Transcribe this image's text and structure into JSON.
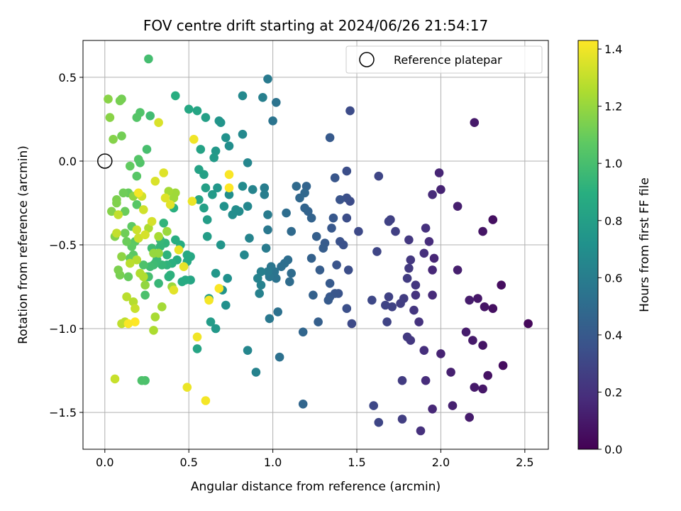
{
  "chart_data": {
    "type": "scatter",
    "title": "FOV centre drift starting at 2024/06/26 21:54:17",
    "xlabel": "Angular distance from reference (arcmin)",
    "ylabel": "Rotation from reference (arcmin)",
    "xlim": [
      -0.13,
      2.64
    ],
    "ylim": [
      -1.72,
      0.72
    ],
    "xticks": [
      0.0,
      0.5,
      1.0,
      1.5,
      2.0,
      2.5
    ],
    "xtick_labels": [
      "0.0",
      "0.5",
      "1.0",
      "1.5",
      "2.0",
      "2.5"
    ],
    "yticks": [
      0.5,
      0.0,
      -0.5,
      -1.0,
      -1.5
    ],
    "ytick_labels": [
      "0.5",
      "0.0",
      "−0.5",
      "−1.0",
      "−1.5"
    ],
    "grid": true,
    "legend": {
      "placement": "top-right",
      "label": "Reference platepar"
    },
    "reference_point": [
      0.0,
      0.0
    ],
    "colorbar": {
      "label": "Hours from first FF file",
      "colormap": "viridis",
      "range": [
        0.0,
        1.43
      ],
      "ticks": [
        0.0,
        0.2,
        0.4,
        0.6,
        0.8,
        1.0,
        1.2,
        1.4
      ],
      "tick_labels": [
        "0.0",
        "0.2",
        "0.4",
        "0.6",
        "0.8",
        "1.0",
        "1.2",
        "1.4"
      ]
    },
    "points": [
      [
        2.52,
        -0.97,
        0.03
      ],
      [
        2.37,
        -1.22,
        0.05
      ],
      [
        2.36,
        -0.74,
        0.05
      ],
      [
        2.31,
        -0.35,
        0.06
      ],
      [
        2.31,
        -0.88,
        0.06
      ],
      [
        2.28,
        -1.28,
        0.07
      ],
      [
        2.25,
        -0.42,
        0.08
      ],
      [
        2.26,
        -0.87,
        0.08
      ],
      [
        2.25,
        -1.1,
        0.08
      ],
      [
        2.25,
        -1.36,
        0.09
      ],
      [
        2.22,
        -0.82,
        0.09
      ],
      [
        2.2,
        -1.35,
        0.1
      ],
      [
        2.2,
        0.23,
        0.1
      ],
      [
        2.19,
        -1.07,
        0.1
      ],
      [
        2.17,
        -1.53,
        0.11
      ],
      [
        2.17,
        -0.83,
        0.11
      ],
      [
        2.15,
        -1.02,
        0.11
      ],
      [
        2.1,
        -0.65,
        0.12
      ],
      [
        2.1,
        -0.27,
        0.12
      ],
      [
        2.07,
        -1.46,
        0.13
      ],
      [
        2.06,
        -1.26,
        0.13
      ],
      [
        2.0,
        -0.17,
        0.14
      ],
      [
        2.0,
        -1.15,
        0.14
      ],
      [
        1.99,
        -0.07,
        0.15
      ],
      [
        1.96,
        -0.58,
        0.15
      ],
      [
        1.95,
        -0.65,
        0.16
      ],
      [
        1.95,
        -1.48,
        0.16
      ],
      [
        1.95,
        -0.8,
        0.17
      ],
      [
        1.95,
        -0.2,
        0.17
      ],
      [
        1.93,
        -0.48,
        0.18
      ],
      [
        1.91,
        -1.31,
        0.18
      ],
      [
        1.9,
        -0.55,
        0.19
      ],
      [
        1.9,
        -1.13,
        0.19
      ],
      [
        1.91,
        -0.4,
        0.2
      ],
      [
        1.88,
        -1.61,
        0.2
      ],
      [
        1.87,
        -0.96,
        0.21
      ],
      [
        1.85,
        -0.8,
        0.21
      ],
      [
        1.85,
        -0.74,
        0.22
      ],
      [
        1.84,
        -0.89,
        0.22
      ],
      [
        1.82,
        -1.07,
        0.23
      ],
      [
        1.82,
        -0.59,
        0.23
      ],
      [
        1.81,
        -0.47,
        0.23
      ],
      [
        1.8,
        -1.05,
        0.24
      ],
      [
        1.81,
        -0.64,
        0.24
      ],
      [
        1.8,
        -0.7,
        0.25
      ],
      [
        1.77,
        -1.31,
        0.25
      ],
      [
        1.78,
        -0.82,
        0.25
      ],
      [
        1.77,
        -1.54,
        0.26
      ],
      [
        1.76,
        -0.85,
        0.26
      ],
      [
        1.73,
        -0.42,
        0.27
      ],
      [
        1.7,
        -0.35,
        0.27
      ],
      [
        1.71,
        -0.87,
        0.28
      ],
      [
        1.69,
        -0.81,
        0.28
      ],
      [
        1.69,
        -0.36,
        0.28
      ],
      [
        1.67,
        -0.86,
        0.29
      ],
      [
        1.68,
        -0.96,
        0.29
      ],
      [
        1.63,
        -0.09,
        0.3
      ],
      [
        1.63,
        -1.56,
        0.3
      ],
      [
        1.62,
        -0.54,
        0.3
      ],
      [
        1.6,
        -1.46,
        0.31
      ],
      [
        1.59,
        -0.83,
        0.31
      ],
      [
        1.51,
        -0.42,
        0.32
      ],
      [
        1.47,
        -0.97,
        0.32
      ],
      [
        1.46,
        -0.24,
        0.33
      ],
      [
        1.46,
        0.3,
        0.33
      ],
      [
        1.45,
        -0.65,
        0.34
      ],
      [
        1.44,
        -0.34,
        0.34
      ],
      [
        1.44,
        -0.06,
        0.34
      ],
      [
        1.44,
        -0.88,
        0.35
      ],
      [
        1.44,
        -0.22,
        0.35
      ],
      [
        1.42,
        -0.5,
        0.36
      ],
      [
        1.4,
        -0.48,
        0.36
      ],
      [
        1.4,
        -0.23,
        0.37
      ],
      [
        1.39,
        -0.79,
        0.37
      ],
      [
        1.38,
        -0.62,
        0.37
      ],
      [
        1.37,
        -0.79,
        0.38
      ],
      [
        1.37,
        -0.1,
        0.38
      ],
      [
        1.36,
        -0.34,
        0.39
      ],
      [
        1.34,
        -0.81,
        0.39
      ],
      [
        1.35,
        -0.4,
        0.39
      ],
      [
        1.34,
        0.14,
        0.4
      ],
      [
        1.34,
        -0.73,
        0.4
      ],
      [
        1.33,
        -0.83,
        0.41
      ],
      [
        1.31,
        -0.49,
        0.41
      ],
      [
        1.3,
        -0.52,
        0.42
      ],
      [
        1.28,
        -0.65,
        0.42
      ],
      [
        1.27,
        -0.96,
        0.43
      ],
      [
        1.26,
        -0.45,
        0.43
      ],
      [
        1.24,
        -0.8,
        0.44
      ],
      [
        1.23,
        -0.58,
        0.44
      ],
      [
        1.23,
        -0.34,
        0.45
      ],
      [
        1.21,
        -0.3,
        0.45
      ],
      [
        1.2,
        -0.15,
        0.46
      ],
      [
        1.19,
        -0.28,
        0.46
      ],
      [
        1.18,
        -1.02,
        0.47
      ],
      [
        1.18,
        -1.45,
        0.47
      ],
      [
        1.19,
        -0.19,
        0.48
      ],
      [
        1.16,
        -0.22,
        0.48
      ],
      [
        1.14,
        -0.15,
        0.49
      ],
      [
        1.11,
        -0.42,
        0.49
      ],
      [
        1.11,
        -0.67,
        0.5
      ],
      [
        1.1,
        -0.72,
        0.5
      ],
      [
        1.09,
        -0.59,
        0.51
      ],
      [
        1.08,
        -0.31,
        0.51
      ],
      [
        1.07,
        -0.61,
        0.52
      ],
      [
        1.05,
        -0.63,
        0.52
      ],
      [
        1.04,
        -1.17,
        0.53
      ],
      [
        1.03,
        -0.9,
        0.53
      ],
      [
        1.02,
        0.35,
        0.54
      ],
      [
        1.02,
        -0.7,
        0.54
      ],
      [
        1.01,
        -0.66,
        0.55
      ],
      [
        1.0,
        0.24,
        0.55
      ],
      [
        0.99,
        -0.63,
        0.56
      ],
      [
        0.98,
        -0.69,
        0.56
      ],
      [
        0.98,
        -0.94,
        0.57
      ],
      [
        0.97,
        -0.41,
        0.57
      ],
      [
        0.97,
        -0.66,
        0.58
      ],
      [
        0.97,
        0.49,
        0.58
      ],
      [
        0.97,
        -0.32,
        0.59
      ],
      [
        0.96,
        -0.52,
        0.59
      ],
      [
        0.95,
        -0.2,
        0.6
      ],
      [
        0.95,
        -0.16,
        0.6
      ],
      [
        0.94,
        0.38,
        0.61
      ],
      [
        0.93,
        -0.66,
        0.61
      ],
      [
        0.93,
        -0.74,
        0.62
      ],
      [
        0.92,
        -0.79,
        0.62
      ],
      [
        0.91,
        -0.7,
        0.63
      ],
      [
        0.9,
        -1.26,
        0.63
      ],
      [
        0.88,
        -0.17,
        0.64
      ],
      [
        0.86,
        -0.46,
        0.64
      ],
      [
        0.85,
        -0.01,
        0.65
      ],
      [
        0.85,
        -1.13,
        0.65
      ],
      [
        0.85,
        -0.27,
        0.66
      ],
      [
        0.83,
        -0.56,
        0.66
      ],
      [
        0.82,
        0.39,
        0.67
      ],
      [
        0.82,
        0.16,
        0.67
      ],
      [
        0.82,
        -0.15,
        0.68
      ],
      [
        0.8,
        -0.3,
        0.68
      ],
      [
        0.78,
        -0.29,
        0.69
      ],
      [
        0.76,
        -0.32,
        0.69
      ],
      [
        0.74,
        0.09,
        0.7
      ],
      [
        0.74,
        -0.2,
        0.7
      ],
      [
        0.73,
        -0.7,
        0.71
      ],
      [
        0.72,
        -0.86,
        0.71
      ],
      [
        0.71,
        -0.27,
        0.72
      ],
      [
        0.72,
        0.14,
        0.72
      ],
      [
        0.7,
        -0.77,
        0.73
      ],
      [
        0.69,
        0.23,
        0.73
      ],
      [
        0.69,
        -0.5,
        0.74
      ],
      [
        0.68,
        0.24,
        0.74
      ],
      [
        0.67,
        -0.16,
        0.75
      ],
      [
        0.66,
        -0.67,
        0.75
      ],
      [
        0.66,
        0.06,
        0.76
      ],
      [
        0.66,
        -1.0,
        0.76
      ],
      [
        0.65,
        0.02,
        0.77
      ],
      [
        0.64,
        -0.2,
        0.77
      ],
      [
        0.63,
        -0.96,
        0.78
      ],
      [
        0.62,
        -0.82,
        0.78
      ],
      [
        0.61,
        -0.35,
        0.79
      ],
      [
        0.61,
        -0.45,
        0.79
      ],
      [
        0.6,
        0.26,
        0.8
      ],
      [
        0.6,
        -0.16,
        0.8
      ],
      [
        0.59,
        -0.28,
        0.81
      ],
      [
        0.59,
        -0.08,
        0.81
      ],
      [
        0.57,
        0.07,
        0.82
      ],
      [
        0.56,
        -0.05,
        0.82
      ],
      [
        0.56,
        -0.23,
        0.83
      ],
      [
        0.55,
        -1.12,
        0.83
      ],
      [
        0.55,
        0.3,
        0.84
      ],
      [
        0.51,
        -0.71,
        0.84
      ],
      [
        0.51,
        -0.57,
        0.85
      ],
      [
        0.5,
        0.31,
        0.85
      ],
      [
        0.49,
        -0.56,
        0.86
      ],
      [
        0.49,
        -0.6,
        0.86
      ],
      [
        0.48,
        -0.71,
        0.87
      ],
      [
        0.46,
        -0.72,
        0.87
      ],
      [
        0.45,
        -0.5,
        0.88
      ],
      [
        0.43,
        -0.59,
        0.88
      ],
      [
        0.42,
        -0.47,
        0.89
      ],
      [
        0.42,
        0.39,
        0.89
      ],
      [
        0.41,
        -0.28,
        0.9
      ],
      [
        0.4,
        -0.61,
        0.9
      ],
      [
        0.39,
        -0.68,
        0.91
      ],
      [
        0.38,
        -0.69,
        0.91
      ],
      [
        0.37,
        -0.56,
        0.92
      ],
      [
        0.37,
        -0.62,
        0.92
      ],
      [
        0.36,
        -0.49,
        0.93
      ],
      [
        0.35,
        -0.37,
        0.93
      ],
      [
        0.34,
        -0.62,
        0.94
      ],
      [
        0.33,
        -0.51,
        0.94
      ],
      [
        0.33,
        -0.47,
        0.95
      ],
      [
        0.32,
        -0.73,
        0.95
      ],
      [
        0.31,
        -0.59,
        0.96
      ],
      [
        0.3,
        -0.61,
        0.96
      ],
      [
        0.29,
        -0.62,
        0.97
      ],
      [
        0.28,
        -0.52,
        0.97
      ],
      [
        0.27,
        -0.63,
        0.98
      ],
      [
        0.27,
        0.27,
        0.98
      ],
      [
        0.26,
        0.61,
        0.99
      ],
      [
        0.26,
        -0.69,
        0.99
      ],
      [
        0.25,
        -0.69,
        1.0
      ],
      [
        0.25,
        0.07,
        1.0
      ],
      [
        0.24,
        -1.31,
        1.01
      ],
      [
        0.24,
        -0.8,
        1.01
      ],
      [
        0.23,
        -0.62,
        1.02
      ],
      [
        0.22,
        -1.31,
        1.02
      ],
      [
        0.21,
        0.29,
        1.03
      ],
      [
        0.21,
        -0.01,
        1.03
      ],
      [
        0.2,
        0.01,
        1.04
      ],
      [
        0.19,
        0.26,
        1.04
      ],
      [
        0.19,
        -0.26,
        1.05
      ],
      [
        0.19,
        -0.09,
        1.05
      ],
      [
        0.18,
        -0.48,
        1.06
      ],
      [
        0.17,
        -0.56,
        1.06
      ],
      [
        0.16,
        -0.51,
        1.07
      ],
      [
        0.16,
        -0.39,
        1.07
      ],
      [
        0.15,
        -0.03,
        1.08
      ],
      [
        0.15,
        -0.58,
        1.08
      ],
      [
        0.14,
        -0.19,
        1.09
      ],
      [
        0.14,
        -0.69,
        1.09
      ],
      [
        0.13,
        -0.48,
        1.1
      ],
      [
        0.12,
        -0.3,
        1.1
      ],
      [
        0.12,
        -0.43,
        1.11
      ],
      [
        0.11,
        -0.19,
        1.11
      ],
      [
        0.1,
        0.37,
        1.12
      ],
      [
        0.1,
        0.15,
        1.12
      ],
      [
        0.09,
        0.36,
        1.13
      ],
      [
        0.09,
        -0.68,
        1.13
      ],
      [
        0.08,
        -0.65,
        1.14
      ],
      [
        0.07,
        -0.23,
        1.14
      ],
      [
        0.07,
        -0.25,
        1.15
      ],
      [
        0.06,
        -0.45,
        1.15
      ],
      [
        0.05,
        0.13,
        1.16
      ],
      [
        0.04,
        -0.3,
        1.16
      ],
      [
        0.03,
        0.26,
        1.17
      ],
      [
        0.02,
        0.37,
        1.17
      ],
      [
        0.1,
        -0.57,
        1.18
      ],
      [
        0.17,
        -0.21,
        1.18
      ],
      [
        0.2,
        -0.46,
        1.19
      ],
      [
        0.24,
        -0.74,
        1.19
      ],
      [
        0.29,
        -0.55,
        1.2
      ],
      [
        0.32,
        -0.55,
        1.2
      ],
      [
        0.37,
        -0.42,
        1.21
      ],
      [
        0.4,
        -0.75,
        1.21
      ],
      [
        0.42,
        -0.19,
        1.22
      ],
      [
        0.41,
        -0.22,
        1.22
      ],
      [
        0.38,
        -0.18,
        1.23
      ],
      [
        0.34,
        -0.87,
        1.23
      ],
      [
        0.32,
        -0.45,
        1.24
      ],
      [
        0.3,
        -0.93,
        1.24
      ],
      [
        0.29,
        -1.01,
        1.25
      ],
      [
        0.26,
        -0.4,
        1.25
      ],
      [
        0.23,
        -0.69,
        1.26
      ],
      [
        0.21,
        -0.67,
        1.26
      ],
      [
        0.19,
        -0.59,
        1.27
      ],
      [
        0.17,
        -0.84,
        1.27
      ],
      [
        0.15,
        -0.61,
        1.28
      ],
      [
        0.13,
        -0.81,
        1.28
      ],
      [
        0.12,
        -0.96,
        1.29
      ],
      [
        0.1,
        -0.97,
        1.29
      ],
      [
        0.08,
        -0.32,
        1.3
      ],
      [
        0.07,
        -0.43,
        1.3
      ],
      [
        0.06,
        -1.3,
        1.31
      ],
      [
        0.18,
        -0.88,
        1.31
      ],
      [
        0.19,
        -0.41,
        1.32
      ],
      [
        0.2,
        -0.46,
        1.32
      ],
      [
        0.22,
        -0.21,
        1.33
      ],
      [
        0.23,
        -0.29,
        1.33
      ],
      [
        0.24,
        -0.44,
        1.34
      ],
      [
        0.28,
        -0.36,
        1.34
      ],
      [
        0.3,
        -0.12,
        1.35
      ],
      [
        0.32,
        0.23,
        1.35
      ],
      [
        0.35,
        -0.07,
        1.36
      ],
      [
        0.36,
        -0.22,
        1.36
      ],
      [
        0.39,
        -0.26,
        1.37
      ],
      [
        0.41,
        -0.77,
        1.37
      ],
      [
        0.44,
        -0.53,
        1.38
      ],
      [
        0.47,
        -0.63,
        1.38
      ],
      [
        0.49,
        -1.35,
        1.39
      ],
      [
        0.52,
        -0.24,
        1.39
      ],
      [
        0.53,
        0.13,
        1.4
      ],
      [
        0.55,
        -1.05,
        1.4
      ],
      [
        0.6,
        -1.43,
        1.41
      ],
      [
        0.62,
        -0.83,
        1.41
      ],
      [
        0.68,
        -0.76,
        1.42
      ],
      [
        0.74,
        -0.08,
        1.42
      ],
      [
        0.74,
        -0.16,
        1.43
      ],
      [
        0.18,
        -0.96,
        1.43
      ],
      [
        0.14,
        -0.97,
        1.42
      ],
      [
        0.2,
        -0.19,
        1.41
      ]
    ]
  }
}
